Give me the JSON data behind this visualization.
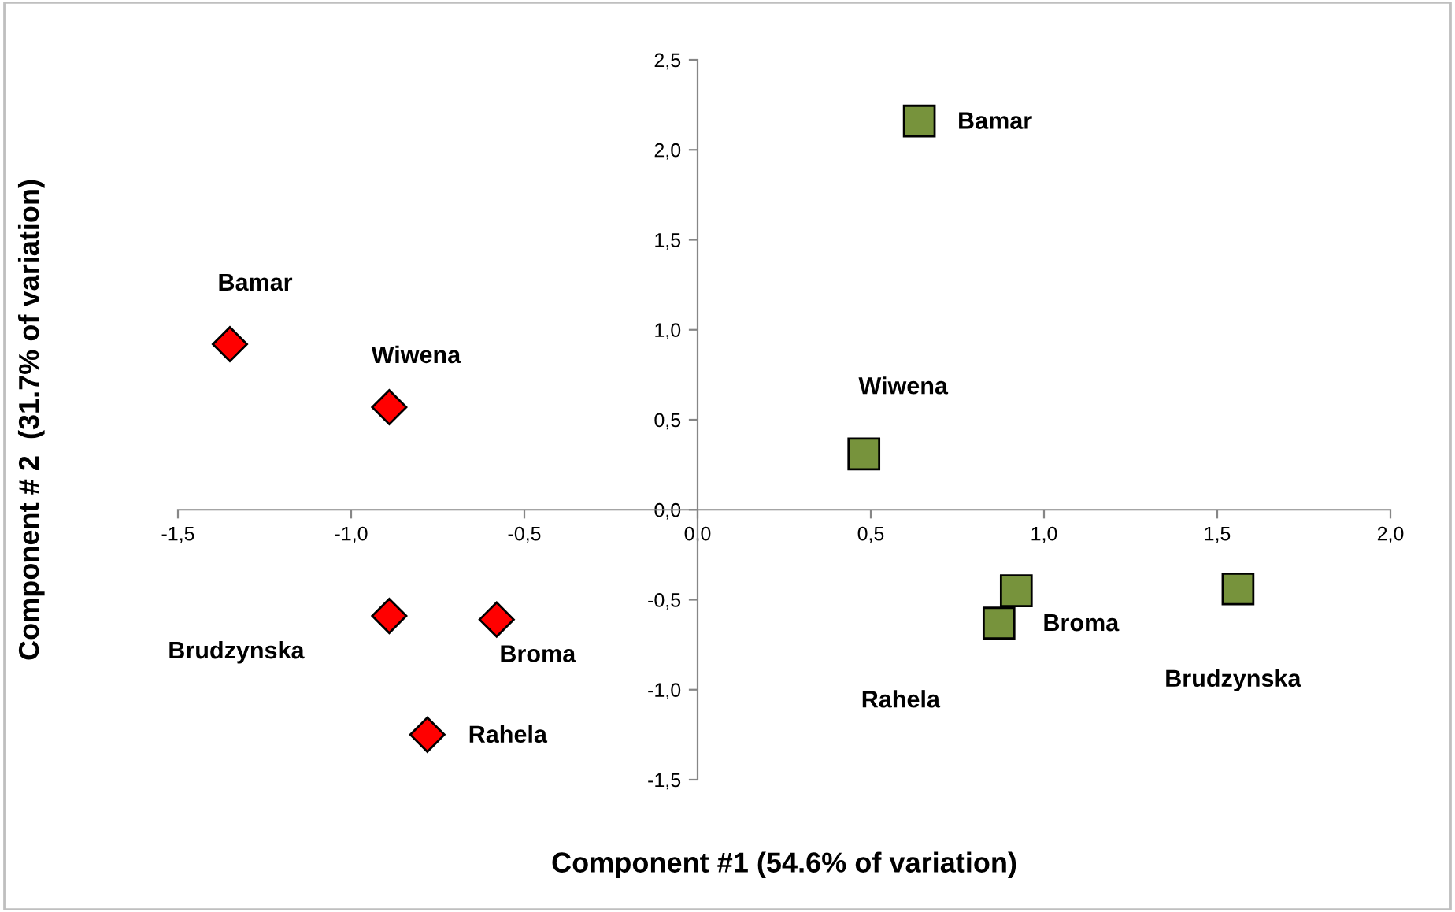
{
  "chart_data": {
    "type": "scatter",
    "xlabel": "Component #1 (54.6% of variation)",
    "ylabel": "Component # 2  (31.7% of variation)",
    "series": [
      {
        "color": "#ff0000",
        "marker": "diamond",
        "x": [
          -1.35,
          -0.89,
          -0.89,
          -0.58,
          -0.78
        ],
        "values": [
          0.92,
          0.57,
          -0.59,
          -0.61,
          -1.25
        ]
      },
      {
        "color": "#77933c",
        "marker": "square",
        "x": [
          0.64,
          0.48,
          0.92,
          0.87,
          1.56
        ],
        "values": [
          2.16,
          0.31,
          -0.45,
          -0.63,
          -0.44
        ]
      }
    ],
    "annotations": [
      {
        "text": "Bamar",
        "x": -1.35,
        "y": 0.92
      },
      {
        "text": "Wiwena",
        "x": -0.89,
        "y": 0.57
      },
      "Brudzynska",
      {
        "text": "Broma",
        "x": -0.58,
        "y": -0.61
      },
      {
        "text": "Rahela",
        "x": -0.78,
        "y": -1.25
      },
      {
        "text": "Bamar",
        "x": 0.64,
        "y": 2.16
      },
      {
        "text": "Wiwena",
        "x": 0.48,
        "y": 0.31
      },
      "Rahela",
      {
        "text": "Broma",
        "x": 0.87,
        "y": -0.63
      },
      "Brudzynska"
    ],
    "xlim": [
      -1.5,
      2.0
    ],
    "ylim": [
      -1.5,
      2.5
    ],
    "xticks": [
      {
        "value": -1.5,
        "label": "-1,5"
      },
      {
        "value": -1.0,
        "label": "-1,0"
      },
      {
        "value": -0.5,
        "label": "-0,5"
      },
      {
        "value": 0.0,
        "label": "0,0"
      },
      {
        "value": 0.5,
        "label": "0,5"
      },
      {
        "value": 1.0,
        "label": "1,0"
      },
      {
        "value": 1.5,
        "label": "1,5"
      },
      {
        "value": 2.0,
        "label": "2,0"
      }
    ],
    "yticks": [
      {
        "value": -1.5,
        "label": "-1,5"
      },
      {
        "value": -1.0,
        "label": "-1,0"
      },
      {
        "value": -0.5,
        "label": "-0,5"
      },
      {
        "value": 0.0,
        "label": "0,0"
      },
      {
        "value": 0.5,
        "label": "0,5"
      },
      {
        "value": 1.0,
        "label": "1,0"
      },
      {
        "value": 1.5,
        "label": "1,5"
      },
      {
        "value": 2.0,
        "label": "2,0"
      },
      {
        "value": 2.5,
        "label": "2,5"
      }
    ],
    "grid": false,
    "legend": false
  }
}
